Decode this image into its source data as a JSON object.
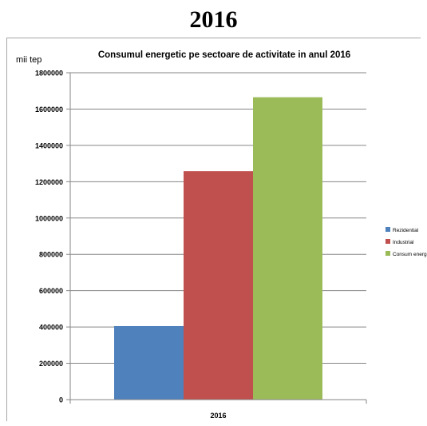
{
  "page": {
    "heading": "2016"
  },
  "chart_data": {
    "type": "bar",
    "title": "Consumul energetic pe sectoare de activitate in anul 2016",
    "ylabel": "mii tep",
    "xlabel": "",
    "categories": [
      "2016"
    ],
    "ylim": [
      0,
      1800000
    ],
    "yticks": [
      0,
      200000,
      400000,
      600000,
      800000,
      1000000,
      1200000,
      1400000,
      1600000,
      1800000
    ],
    "grid": true,
    "legend_position": "right",
    "series": [
      {
        "name": "Rezidential",
        "values": [
          405000
        ],
        "color": "#4f81bd"
      },
      {
        "name": "Industrial",
        "values": [
          1258000
        ],
        "color": "#c0504d"
      },
      {
        "name": "Consum energetic",
        "values": [
          1665000
        ],
        "color": "#9bbb59"
      }
    ]
  }
}
